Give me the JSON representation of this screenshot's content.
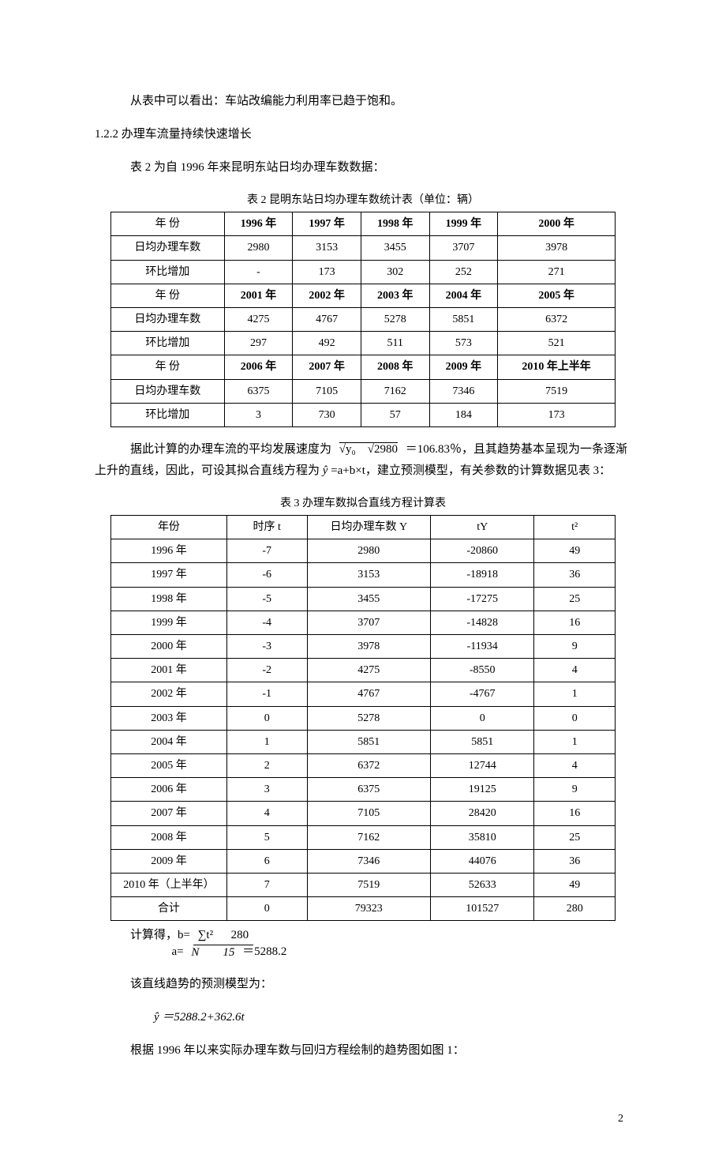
{
  "para1": "从表中可以看出：车站改编能力利用率已趋于饱和。",
  "heading122": "1.2.2 办理车流量持续快速增长",
  "para2": "表 2 为自 1996 年来昆明东站日均办理车数数据：",
  "table2": {
    "caption": "表 2 昆明东站日均办理车数统计表（单位：辆）",
    "row_year_label": "年 份",
    "row_count_label": "日均办理车数",
    "row_delta_label": "环比增加",
    "block1": {
      "years": [
        "1996 年",
        "1997 年",
        "1998 年",
        "1999 年",
        "2000 年"
      ],
      "counts": [
        "2980",
        "3153",
        "3455",
        "3707",
        "3978"
      ],
      "deltas": [
        "-",
        "173",
        "302",
        "252",
        "271"
      ]
    },
    "block2": {
      "years": [
        "2001 年",
        "2002 年",
        "2003 年",
        "2004 年",
        "2005 年"
      ],
      "counts": [
        "4275",
        "4767",
        "5278",
        "5851",
        "6372"
      ],
      "deltas": [
        "297",
        "492",
        "511",
        "573",
        "521"
      ]
    },
    "block3": {
      "years": [
        "2006 年",
        "2007 年",
        "2008 年",
        "2009 年",
        "2010 年上半年"
      ],
      "counts": [
        "6375",
        "7105",
        "7162",
        "7346",
        "7519"
      ],
      "deltas": [
        "3",
        "730",
        "57",
        "184",
        "173"
      ]
    }
  },
  "para3_a": "据此计算的办理车流的平均发展速度为",
  "para3_formula_sqrt": "√y₀    √2980",
  "para3_b": "＝106.83％，且其趋势基本呈现为一条逐渐上升的直线，因此，可设其拟合直线方程为",
  "para3_yhat": "ŷ",
  "para3_c": "=a+b×t，建立预测模型，有关参数的计算数据见表 3：",
  "table3": {
    "caption": "表 3 办理车数拟合直线方程计算表",
    "headers": [
      "年份",
      "时序 t",
      "日均办理车数 Y",
      "tY",
      "t²"
    ],
    "rows": [
      [
        "1996 年",
        "-7",
        "2980",
        "-20860",
        "49"
      ],
      [
        "1997 年",
        "-6",
        "3153",
        "-18918",
        "36"
      ],
      [
        "1998 年",
        "-5",
        "3455",
        "-17275",
        "25"
      ],
      [
        "1999 年",
        "-4",
        "3707",
        "-14828",
        "16"
      ],
      [
        "2000 年",
        "-3",
        "3978",
        "-11934",
        "9"
      ],
      [
        "2001 年",
        "-2",
        "4275",
        "-8550",
        "4"
      ],
      [
        "2002 年",
        "-1",
        "4767",
        "-4767",
        "1"
      ],
      [
        "2003 年",
        "0",
        "5278",
        "0",
        "0"
      ],
      [
        "2004 年",
        "1",
        "5851",
        "5851",
        "1"
      ],
      [
        "2005 年",
        "2",
        "6372",
        "12744",
        "4"
      ],
      [
        "2006 年",
        "3",
        "6375",
        "19125",
        "9"
      ],
      [
        "2007 年",
        "4",
        "7105",
        "28420",
        "16"
      ],
      [
        "2008 年",
        "5",
        "7162",
        "35810",
        "25"
      ],
      [
        "2009 年",
        "6",
        "7346",
        "44076",
        "36"
      ],
      [
        "2010 年（上半年）",
        "7",
        "7519",
        "52633",
        "49"
      ],
      [
        "合计",
        "0",
        "79323",
        "101527",
        "280"
      ]
    ]
  },
  "calc_line1": "计算得，b=",
  "calc_frac_top": "∑t²      280",
  "calc_line2": "a=",
  "calc_frac_bottom": "N        15",
  "calc_line2_result": "＝5288.2",
  "para4": "该直线趋势的预测模型为：",
  "model_formula": "ŷ ＝5288.2+362.6t",
  "para5": "根据 1996 年以来实际办理车数与回归方程绘制的趋势图如图 1：",
  "page_number": "2"
}
